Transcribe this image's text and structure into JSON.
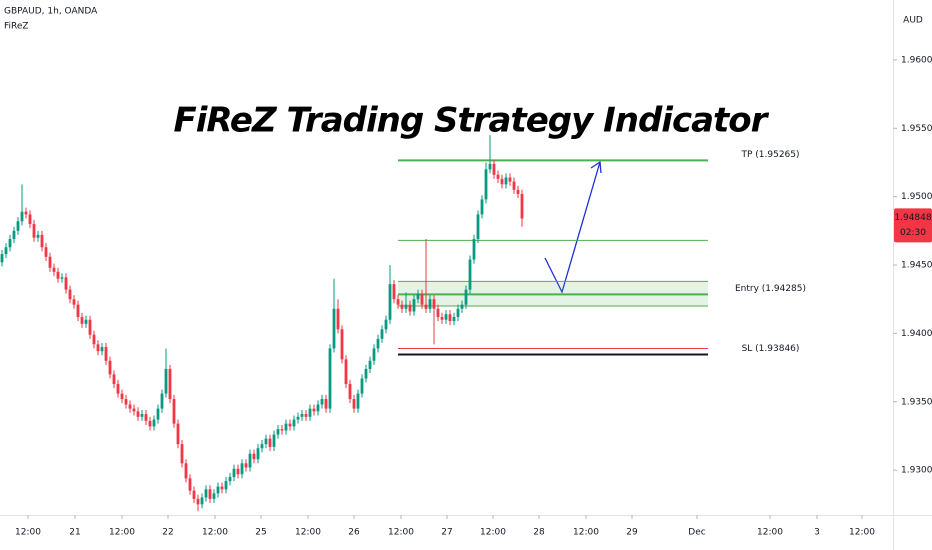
{
  "header": {
    "symbol": "GBPAUD, 1h, OANDA",
    "indicator": "FiReZ",
    "currency": "AUD"
  },
  "chart_data": {
    "type": "candlestick",
    "title": "FiReZ Trading Strategy Indicator",
    "up_color": "#089981",
    "down_color": "#f23645",
    "ylim": [
      1.92672,
      1.96438
    ],
    "yticks": [
      {
        "value": 1.96,
        "label": "1.96000"
      },
      {
        "value": 1.955,
        "label": "1.95500"
      },
      {
        "value": 1.95,
        "label": "1.95000"
      },
      {
        "value": 1.945,
        "label": "1.94500"
      },
      {
        "value": 1.94,
        "label": "1.94000"
      },
      {
        "value": 1.935,
        "label": "1.93500"
      },
      {
        "value": 1.93,
        "label": "1.93000"
      }
    ],
    "xlim": [
      -0.5,
      222.75
    ],
    "xticks": [
      {
        "value": 6.5,
        "label": "12:00"
      },
      {
        "value": 18.25,
        "label": "21"
      },
      {
        "value": 30,
        "label": "12:00"
      },
      {
        "value": 41.5,
        "label": "22"
      },
      {
        "value": 53.25,
        "label": "12:00"
      },
      {
        "value": 64.75,
        "label": "25"
      },
      {
        "value": 76.5,
        "label": "12:00"
      },
      {
        "value": 88,
        "label": "26"
      },
      {
        "value": 99.75,
        "label": "12:00"
      },
      {
        "value": 111.25,
        "label": "27"
      },
      {
        "value": 122.75,
        "label": "12:00"
      },
      {
        "value": 134.25,
        "label": "28"
      },
      {
        "value": 146,
        "label": "12:00"
      },
      {
        "value": 157.5,
        "label": "29"
      },
      {
        "value": 173.75,
        "label": "Dec"
      },
      {
        "value": 192,
        "label": "12:00"
      },
      {
        "value": 203.75,
        "label": "3"
      },
      {
        "value": 215,
        "label": "12:00"
      }
    ],
    "last_price": {
      "value": 1.94848,
      "countdown": "02:30"
    },
    "level_span": [
      99,
      176.5
    ],
    "levels": [
      {
        "label": "TP (1.95265)",
        "value": 1.95265,
        "color": "#4caf50"
      },
      {
        "label": "Entry (1.94285)",
        "value": 1.94285,
        "color": "#4caf50"
      },
      {
        "label": "SL (1.93846)",
        "value": 1.93846,
        "color": "#131722"
      }
    ],
    "lines": [
      {
        "value": 1.9468,
        "color": "#4caf50"
      },
      {
        "value": 1.9438,
        "color": "#4caf50"
      },
      {
        "value": 1.942,
        "color": "#4caf50"
      },
      {
        "value": 1.9389,
        "color": "#f23645"
      }
    ],
    "zone": [
      1.942,
      1.9438
    ],
    "candles": [
      [
        1.9452,
        1.9461,
        1.9449,
        1.9458
      ],
      [
        1.9458,
        1.9466,
        1.9455,
        1.9463
      ],
      [
        1.9463,
        1.9472,
        1.946,
        1.9469
      ],
      [
        1.9469,
        1.9478,
        1.9466,
        1.9475
      ],
      [
        1.9475,
        1.9485,
        1.9472,
        1.9482
      ],
      [
        1.9482,
        1.9509,
        1.9479,
        1.9489
      ],
      [
        1.9489,
        1.9492,
        1.9484,
        1.9487
      ],
      [
        1.9487,
        1.949,
        1.9477,
        1.948
      ],
      [
        1.948,
        1.9483,
        1.9467,
        1.947
      ],
      [
        1.947,
        1.9475,
        1.9467,
        1.9472
      ],
      [
        1.9472,
        1.9475,
        1.946,
        1.9463
      ],
      [
        1.9463,
        1.9466,
        1.9453,
        1.9456
      ],
      [
        1.9456,
        1.9459,
        1.9445,
        1.9448
      ],
      [
        1.9448,
        1.9451,
        1.9442,
        1.9445
      ],
      [
        1.9445,
        1.9448,
        1.9437,
        1.944
      ],
      [
        1.944,
        1.9444,
        1.9437,
        1.9441
      ],
      [
        1.9441,
        1.9444,
        1.9429,
        1.9432
      ],
      [
        1.9432,
        1.9435,
        1.9422,
        1.9425
      ],
      [
        1.9425,
        1.9428,
        1.9418,
        1.9421
      ],
      [
        1.9421,
        1.9424,
        1.9409,
        1.9412
      ],
      [
        1.9412,
        1.9415,
        1.9404,
        1.9407
      ],
      [
        1.9407,
        1.9413,
        1.9404,
        1.941
      ],
      [
        1.941,
        1.9413,
        1.9396,
        1.9399
      ],
      [
        1.9399,
        1.9402,
        1.9389,
        1.9392
      ],
      [
        1.9392,
        1.9395,
        1.9384,
        1.9387
      ],
      [
        1.9387,
        1.9393,
        1.9384,
        1.939
      ],
      [
        1.939,
        1.9393,
        1.9377,
        1.938
      ],
      [
        1.938,
        1.9383,
        1.9367,
        1.937
      ],
      [
        1.937,
        1.9373,
        1.936,
        1.9363
      ],
      [
        1.9363,
        1.9366,
        1.9353,
        1.9356
      ],
      [
        1.9356,
        1.9359,
        1.9349,
        1.9352
      ],
      [
        1.9352,
        1.9355,
        1.9345,
        1.9348
      ],
      [
        1.9348,
        1.9351,
        1.9342,
        1.9345
      ],
      [
        1.9345,
        1.9348,
        1.934,
        1.9343
      ],
      [
        1.9343,
        1.9346,
        1.9336,
        1.9339
      ],
      [
        1.9339,
        1.9344,
        1.9336,
        1.9341
      ],
      [
        1.9341,
        1.9344,
        1.9333,
        1.9336
      ],
      [
        1.9336,
        1.9339,
        1.9329,
        1.9332
      ],
      [
        1.9332,
        1.934,
        1.9329,
        1.9337
      ],
      [
        1.9337,
        1.9348,
        1.9334,
        1.9345
      ],
      [
        1.9345,
        1.9359,
        1.9342,
        1.9356
      ],
      [
        1.9356,
        1.9389,
        1.9353,
        1.9374
      ],
      [
        1.9374,
        1.9377,
        1.9349,
        1.9352
      ],
      [
        1.9352,
        1.9355,
        1.9331,
        1.9334
      ],
      [
        1.9334,
        1.9337,
        1.9316,
        1.9319
      ],
      [
        1.9319,
        1.9322,
        1.9302,
        1.9305
      ],
      [
        1.9305,
        1.9308,
        1.9291,
        1.9294
      ],
      [
        1.9294,
        1.9297,
        1.9282,
        1.9285
      ],
      [
        1.9285,
        1.9288,
        1.9276,
        1.9279
      ],
      [
        1.9279,
        1.9282,
        1.927,
        1.9275
      ],
      [
        1.9275,
        1.9283,
        1.9272,
        1.928
      ],
      [
        1.928,
        1.9289,
        1.9277,
        1.9286
      ],
      [
        1.9286,
        1.9289,
        1.9276,
        1.9279
      ],
      [
        1.9279,
        1.9286,
        1.9276,
        1.9283
      ],
      [
        1.9283,
        1.9291,
        1.928,
        1.9288
      ],
      [
        1.9288,
        1.9291,
        1.9283,
        1.9286
      ],
      [
        1.9286,
        1.9295,
        1.9283,
        1.9292
      ],
      [
        1.9292,
        1.9298,
        1.9289,
        1.9295
      ],
      [
        1.9295,
        1.9304,
        1.9292,
        1.9301
      ],
      [
        1.9301,
        1.9304,
        1.9294,
        1.9297
      ],
      [
        1.9297,
        1.9308,
        1.9294,
        1.9305
      ],
      [
        1.9305,
        1.9308,
        1.9299,
        1.9302
      ],
      [
        1.9302,
        1.9315,
        1.9299,
        1.9312
      ],
      [
        1.9312,
        1.9315,
        1.9305,
        1.9308
      ],
      [
        1.9308,
        1.9319,
        1.9305,
        1.9316
      ],
      [
        1.9316,
        1.9322,
        1.9313,
        1.9319
      ],
      [
        1.9319,
        1.9326,
        1.9316,
        1.9323
      ],
      [
        1.9323,
        1.9326,
        1.9314,
        1.9317
      ],
      [
        1.9317,
        1.9329,
        1.9314,
        1.9326
      ],
      [
        1.9326,
        1.9333,
        1.9323,
        1.933
      ],
      [
        1.933,
        1.9333,
        1.9326,
        1.9329
      ],
      [
        1.9329,
        1.9337,
        1.9326,
        1.9334
      ],
      [
        1.9334,
        1.9337,
        1.9329,
        1.9332
      ],
      [
        1.9332,
        1.934,
        1.9329,
        1.9337
      ],
      [
        1.9337,
        1.9342,
        1.9334,
        1.9339
      ],
      [
        1.9339,
        1.9344,
        1.9336,
        1.9341
      ],
      [
        1.9341,
        1.9344,
        1.9336,
        1.9339
      ],
      [
        1.9339,
        1.9348,
        1.9336,
        1.9345
      ],
      [
        1.9345,
        1.9348,
        1.934,
        1.9343
      ],
      [
        1.9343,
        1.9351,
        1.934,
        1.9348
      ],
      [
        1.9348,
        1.9355,
        1.9345,
        1.9352
      ],
      [
        1.9352,
        1.9355,
        1.9342,
        1.9345
      ],
      [
        1.9345,
        1.9392,
        1.9342,
        1.9389
      ],
      [
        1.9389,
        1.944,
        1.9386,
        1.9418
      ],
      [
        1.9418,
        1.9425,
        1.94,
        1.9403
      ],
      [
        1.9403,
        1.9406,
        1.9378,
        1.9381
      ],
      [
        1.9381,
        1.9384,
        1.936,
        1.9363
      ],
      [
        1.9363,
        1.9366,
        1.9349,
        1.9352
      ],
      [
        1.9352,
        1.9355,
        1.9342,
        1.9345
      ],
      [
        1.9345,
        1.9359,
        1.9342,
        1.9356
      ],
      [
        1.9356,
        1.937,
        1.9353,
        1.9367
      ],
      [
        1.9367,
        1.9377,
        1.9364,
        1.9374
      ],
      [
        1.9374,
        1.9383,
        1.9371,
        1.938
      ],
      [
        1.938,
        1.9392,
        1.9377,
        1.9389
      ],
      [
        1.9389,
        1.9399,
        1.9386,
        1.9396
      ],
      [
        1.9396,
        1.9406,
        1.9393,
        1.9403
      ],
      [
        1.9403,
        1.9413,
        1.94,
        1.941
      ],
      [
        1.941,
        1.945,
        1.9407,
        1.9436
      ],
      [
        1.9436,
        1.9439,
        1.9422,
        1.9425
      ],
      [
        1.9425,
        1.9428,
        1.9418,
        1.9421
      ],
      [
        1.9421,
        1.9424,
        1.9415,
        1.9418
      ],
      [
        1.9418,
        1.943,
        1.9415,
        1.9421
      ],
      [
        1.9421,
        1.9424,
        1.9413,
        1.9416
      ],
      [
        1.9416,
        1.9428,
        1.9413,
        1.9425
      ],
      [
        1.9425,
        1.9432,
        1.9422,
        1.9429
      ],
      [
        1.9429,
        1.9432,
        1.9418,
        1.9421
      ],
      [
        1.9421,
        1.9469,
        1.9415,
        1.9418
      ],
      [
        1.9418,
        1.9428,
        1.9415,
        1.9425
      ],
      [
        1.9425,
        1.9428,
        1.9392,
        1.9418
      ],
      [
        1.9418,
        1.9421,
        1.9409,
        1.9412
      ],
      [
        1.9412,
        1.9415,
        1.9407,
        1.941
      ],
      [
        1.941,
        1.9417,
        1.9407,
        1.9414
      ],
      [
        1.9414,
        1.9417,
        1.9406,
        1.9409
      ],
      [
        1.9409,
        1.9415,
        1.9406,
        1.9412
      ],
      [
        1.9412,
        1.9421,
        1.9409,
        1.9418
      ],
      [
        1.9418,
        1.9424,
        1.9415,
        1.9421
      ],
      [
        1.9421,
        1.9435,
        1.9418,
        1.9432
      ],
      [
        1.9432,
        1.9457,
        1.9429,
        1.9454
      ],
      [
        1.9454,
        1.9472,
        1.9451,
        1.9469
      ],
      [
        1.9469,
        1.949,
        1.9466,
        1.9487
      ],
      [
        1.9487,
        1.9501,
        1.9484,
        1.9498
      ],
      [
        1.9498,
        1.9525,
        1.9495,
        1.952
      ],
      [
        1.952,
        1.9545,
        1.9517,
        1.9524
      ],
      [
        1.9524,
        1.9527,
        1.9513,
        1.9516
      ],
      [
        1.9516,
        1.9519,
        1.951,
        1.9513
      ],
      [
        1.9513,
        1.9516,
        1.9506,
        1.9509
      ],
      [
        1.9509,
        1.9517,
        1.9506,
        1.9514
      ],
      [
        1.9514,
        1.9517,
        1.9508,
        1.9511
      ],
      [
        1.9511,
        1.9514,
        1.9502,
        1.9505
      ],
      [
        1.9505,
        1.9508,
        1.9499,
        1.9502
      ],
      [
        1.9502,
        1.9505,
        1.9478,
        1.9484
      ]
    ]
  }
}
